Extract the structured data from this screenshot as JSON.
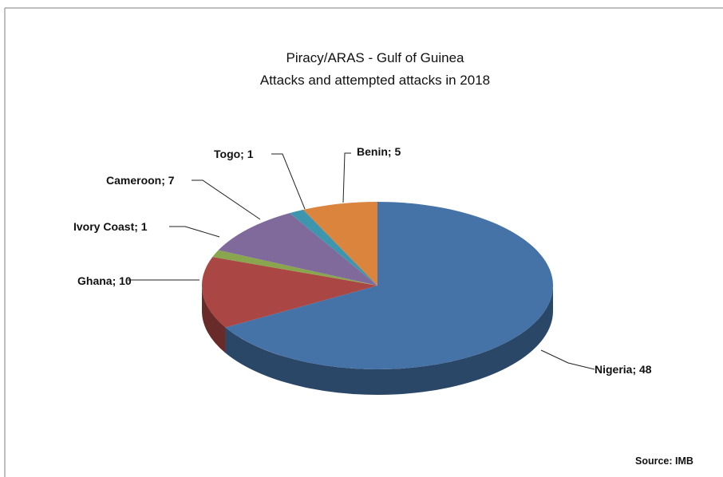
{
  "chart_data": {
    "type": "pie",
    "style": "3d",
    "title": "Piracy/ARAS - Gulf of Guinea",
    "subtitle": "Attacks and attempted attacks in 2018",
    "source": "Source: IMB",
    "slices": [
      {
        "label": "Nigeria",
        "value": 48,
        "display": "Nigeria; 48",
        "color": "#4572a7"
      },
      {
        "label": "Ghana",
        "value": 10,
        "display": "Ghana; 10",
        "color": "#aa4643"
      },
      {
        "label": "Ivory Coast",
        "value": 1,
        "display": "Ivory Coast; 1",
        "color": "#89a54e"
      },
      {
        "label": "Cameroon",
        "value": 7,
        "display": "Cameroon; 7",
        "color": "#80699b"
      },
      {
        "label": "Togo",
        "value": 1,
        "display": "Togo; 1",
        "color": "#3d96ae"
      },
      {
        "label": "Benin",
        "value": 5,
        "display": "Benin; 5",
        "color": "#db843d"
      }
    ]
  }
}
